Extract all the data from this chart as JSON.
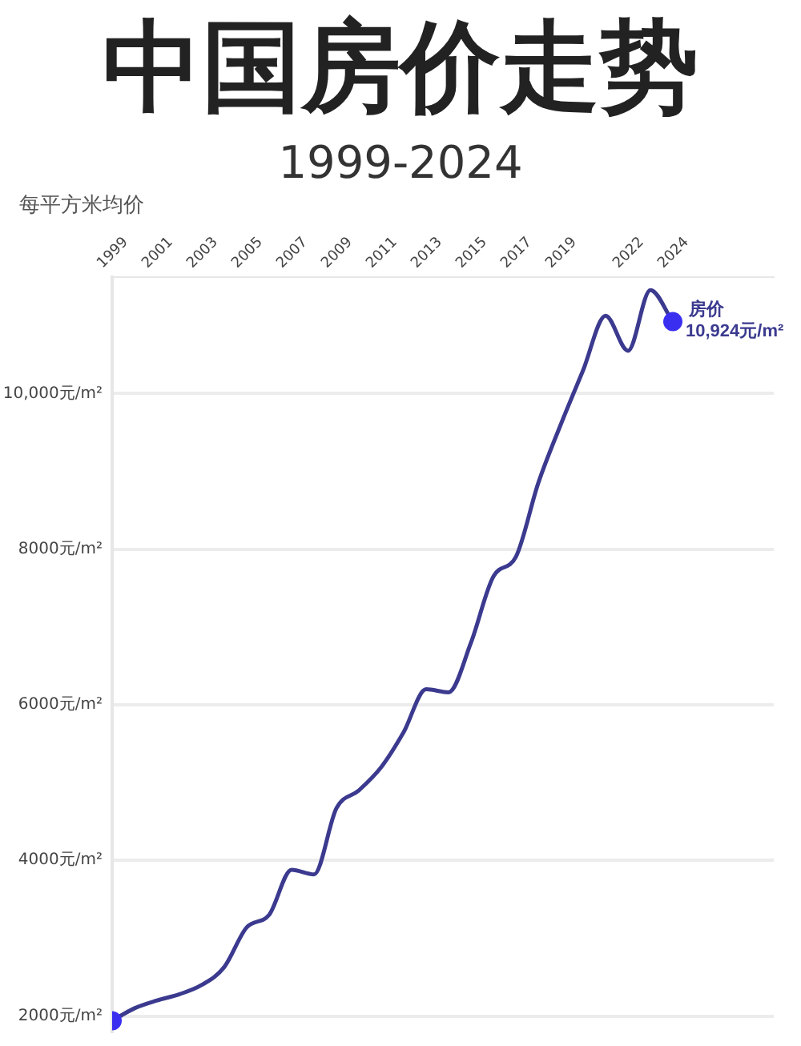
{
  "chart_data": {
    "type": "line",
    "title": "中国房价走势",
    "subtitle": "1999-2024",
    "ylabel": "每平方米均价",
    "x": [
      1999,
      2000,
      2001,
      2002,
      2003,
      2004,
      2005,
      2006,
      2007,
      2008,
      2009,
      2010,
      2011,
      2012,
      2013,
      2014,
      2015,
      2016,
      2017,
      2018,
      2019,
      2020,
      2021,
      2022,
      2023,
      2024
    ],
    "series": [
      {
        "name": "房价",
        "color": "#3b3a8f",
        "values": [
          1940,
          2100,
          2200,
          2280,
          2400,
          2630,
          3140,
          3300,
          3880,
          3820,
          4670,
          4900,
          5200,
          5650,
          6200,
          6160,
          6800,
          7650,
          7900,
          8850,
          9600,
          10300,
          11000,
          10550,
          11330,
          10924
        ],
        "value_labels": [
          null,
          null,
          null,
          null,
          null,
          null,
          null,
          null,
          null,
          null,
          null,
          null,
          null,
          null,
          null,
          null,
          null,
          null,
          null,
          null,
          null,
          null,
          null,
          null,
          null,
          "10,924元/m²"
        ]
      }
    ],
    "xlim": [
      1999,
      2028.5
    ],
    "xticks": [
      1999,
      2001,
      2003,
      2005,
      2007,
      2009,
      2011,
      2013,
      2015,
      2017,
      2019,
      2022,
      2024
    ],
    "ylim": [
      1800,
      11500
    ],
    "yticks": [
      {
        "value": 2000,
        "label": "2000元/m²"
      },
      {
        "value": 4000,
        "label": "4000元/m²"
      },
      {
        "value": 6000,
        "label": "6000元/m²"
      },
      {
        "value": 8000,
        "label": "8000元/m²"
      },
      {
        "value": 10000,
        "label": "10,000元/m²"
      }
    ],
    "grid": "y",
    "legend": false
  }
}
